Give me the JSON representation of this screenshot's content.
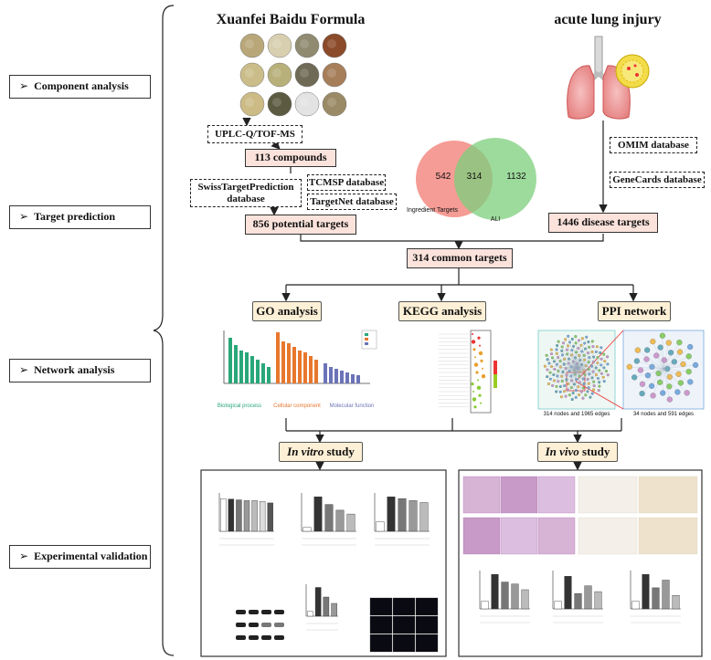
{
  "stages": [
    "Component analysis",
    "Target prediction",
    "Network analysis",
    "Experimental validation"
  ],
  "left_branch": {
    "title": "Xuanfei Baidu Formula",
    "method": "UPLC-Q/TOF-MS",
    "compounds": "113 compounds",
    "databases": [
      "SwissTargetPrediction database",
      "TCMSP database",
      "TargetNet database"
    ],
    "targets": "856 potential targets"
  },
  "right_branch": {
    "title": "acute lung injury",
    "databases": [
      "OMIM database",
      "GeneCards database"
    ],
    "targets": "1446 disease targets"
  },
  "venn": {
    "left_only": 542,
    "overlap": 314,
    "right_only": 1132,
    "left_label": "Ingredient Targets",
    "right_label": "ALI"
  },
  "common": "314 common targets",
  "analyses": [
    "GO analysis",
    "KEGG analysis",
    "PPI network"
  ],
  "go_categories": [
    "Biological process",
    "Cellular component",
    "Molecular function"
  ],
  "ppi_captions": [
    "314 nodes and 1965 edges",
    "34 nodes and 591 edges"
  ],
  "studies": [
    {
      "emphasis": "In vitro",
      "text": " study"
    },
    {
      "emphasis": "In vivo",
      "text": " study"
    }
  ]
}
